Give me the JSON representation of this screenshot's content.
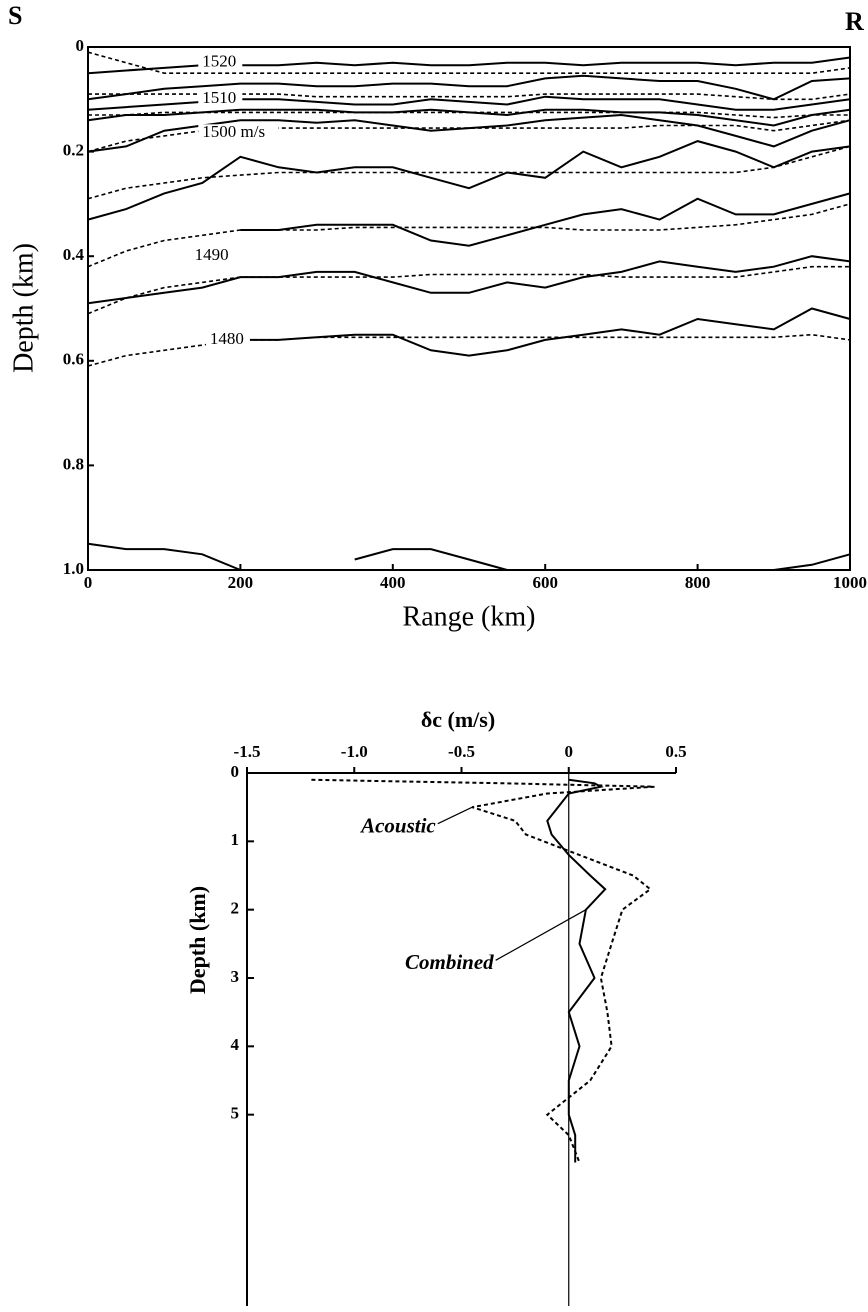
{
  "chart_data": [
    {
      "type": "line",
      "corner_labels": [
        "S",
        "R"
      ],
      "xlabel": "Range (km)",
      "ylabel": "Depth (km)",
      "xlim": [
        0,
        1000
      ],
      "ylim": [
        0,
        1
      ],
      "y_inverted": true,
      "xticks": [
        0,
        200,
        400,
        600,
        800,
        1000
      ],
      "yticks": [
        0,
        0.2,
        0.4,
        0.6,
        0.8,
        {
          "value": 1,
          "label": "1.0"
        }
      ],
      "x": [
        0,
        50,
        100,
        150,
        200,
        250,
        300,
        350,
        400,
        450,
        500,
        550,
        600,
        650,
        700,
        750,
        800,
        850,
        900,
        950,
        1000
      ],
      "series": [
        {
          "style": "solid",
          "color": "#000",
          "values": [
            0.05,
            0.045,
            0.04,
            0.035,
            0.035,
            0.035,
            0.03,
            0.035,
            0.03,
            0.035,
            0.035,
            0.03,
            0.03,
            0.035,
            0.03,
            0.03,
            0.03,
            0.035,
            0.03,
            0.03,
            0.02
          ]
        },
        {
          "style": "solid",
          "color": "#000",
          "values": [
            0.1,
            0.09,
            0.08,
            0.075,
            0.07,
            0.07,
            0.075,
            0.075,
            0.07,
            0.07,
            0.075,
            0.075,
            0.06,
            0.055,
            0.06,
            0.065,
            0.065,
            0.08,
            0.1,
            0.065,
            0.06
          ]
        },
        {
          "style": "solid",
          "color": "#000",
          "values": [
            0.12,
            0.115,
            0.11,
            0.105,
            0.1,
            0.1,
            0.105,
            0.11,
            0.11,
            0.1,
            0.105,
            0.11,
            0.095,
            0.1,
            0.1,
            0.1,
            0.11,
            0.12,
            0.12,
            0.11,
            0.1
          ]
        },
        {
          "style": "solid",
          "color": "#000",
          "values": [
            0.14,
            0.13,
            0.13,
            0.125,
            0.12,
            0.12,
            0.12,
            0.125,
            0.125,
            0.12,
            0.125,
            0.13,
            0.12,
            0.12,
            0.125,
            0.125,
            0.13,
            0.14,
            0.15,
            0.13,
            0.12
          ]
        },
        {
          "style": "solid",
          "color": "#000",
          "values": [
            0.2,
            0.19,
            0.16,
            0.15,
            0.14,
            0.14,
            0.145,
            0.14,
            0.15,
            0.16,
            0.155,
            0.15,
            0.14,
            0.135,
            0.13,
            0.14,
            0.15,
            0.17,
            0.19,
            0.16,
            0.14
          ]
        },
        {
          "style": "solid",
          "color": "#000",
          "values": [
            0.33,
            0.31,
            0.28,
            0.26,
            0.21,
            0.23,
            0.24,
            0.23,
            0.23,
            0.25,
            0.27,
            0.24,
            0.25,
            0.2,
            0.23,
            0.21,
            0.18,
            0.2,
            0.23,
            0.2,
            0.19
          ]
        },
        {
          "style": "solid",
          "color": "#000",
          "values": [
            null,
            null,
            null,
            null,
            0.35,
            0.35,
            0.34,
            0.34,
            0.34,
            0.37,
            0.38,
            0.36,
            0.34,
            0.32,
            0.31,
            0.33,
            0.29,
            0.32,
            0.32,
            0.3,
            0.28
          ]
        },
        {
          "style": "solid",
          "color": "#000",
          "values": [
            0.49,
            0.48,
            0.47,
            0.46,
            0.44,
            0.44,
            0.43,
            0.43,
            0.45,
            0.47,
            0.47,
            0.45,
            0.46,
            0.44,
            0.43,
            0.41,
            0.42,
            0.43,
            0.42,
            0.4,
            0.41
          ]
        },
        {
          "style": "solid",
          "color": "#000",
          "values": [
            null,
            null,
            null,
            null,
            0.56,
            0.56,
            0.555,
            0.55,
            0.55,
            0.58,
            0.59,
            0.58,
            0.56,
            0.55,
            0.54,
            0.55,
            0.52,
            0.53,
            0.54,
            0.5,
            0.52
          ]
        },
        {
          "style": "solid",
          "color": "#000",
          "values": [
            0.95,
            0.96,
            0.96,
            0.97,
            1,
            null,
            null,
            0.98,
            0.96,
            0.96,
            0.98,
            1,
            null,
            null,
            null,
            null,
            null,
            null,
            1,
            0.99,
            0.97
          ]
        },
        {
          "style": "dashed",
          "color": "#000",
          "values": [
            0.01,
            0.03,
            0.05,
            0.05,
            0.05,
            0.05,
            0.05,
            0.05,
            0.05,
            0.05,
            0.05,
            0.05,
            0.05,
            0.05,
            0.05,
            0.05,
            0.05,
            0.05,
            0.05,
            0.05,
            0.04
          ]
        },
        {
          "style": "dashed",
          "color": "#000",
          "values": [
            0.09,
            0.09,
            0.09,
            0.09,
            0.09,
            0.09,
            0.095,
            0.095,
            0.095,
            0.095,
            0.095,
            0.095,
            0.09,
            0.09,
            0.09,
            0.09,
            0.09,
            0.095,
            0.1,
            0.1,
            0.09
          ]
        },
        {
          "style": "dashed",
          "color": "#000",
          "values": [
            0.13,
            0.13,
            0.125,
            0.125,
            0.125,
            0.125,
            0.125,
            0.125,
            0.125,
            0.125,
            0.125,
            0.125,
            0.125,
            0.125,
            0.125,
            0.125,
            0.125,
            0.13,
            0.135,
            0.13,
            0.13
          ]
        },
        {
          "style": "dashed",
          "color": "#000",
          "values": [
            0.2,
            0.18,
            0.17,
            0.16,
            0.155,
            0.155,
            0.155,
            0.155,
            0.155,
            0.155,
            0.155,
            0.155,
            0.155,
            0.155,
            0.155,
            0.15,
            0.15,
            0.15,
            0.16,
            0.15,
            0.14
          ]
        },
        {
          "style": "dashed",
          "color": "#000",
          "values": [
            0.29,
            0.27,
            0.26,
            0.25,
            0.245,
            0.24,
            0.24,
            0.24,
            0.24,
            0.24,
            0.24,
            0.24,
            0.24,
            0.24,
            0.24,
            0.24,
            0.24,
            0.24,
            0.23,
            0.21,
            0.19
          ]
        },
        {
          "style": "dashed",
          "color": "#000",
          "values": [
            0.42,
            0.39,
            0.37,
            0.36,
            0.35,
            0.35,
            0.35,
            0.345,
            0.345,
            0.345,
            0.345,
            0.345,
            0.345,
            0.35,
            0.35,
            0.35,
            0.345,
            0.34,
            0.33,
            0.32,
            0.3
          ]
        },
        {
          "style": "dashed",
          "color": "#000",
          "values": [
            0.51,
            0.48,
            0.46,
            0.45,
            0.44,
            0.44,
            0.44,
            0.44,
            0.44,
            0.435,
            0.435,
            0.435,
            0.435,
            0.435,
            0.44,
            0.44,
            0.44,
            0.44,
            0.43,
            0.42,
            0.42
          ]
        },
        {
          "style": "dashed",
          "color": "#000",
          "values": [
            0.61,
            0.59,
            0.58,
            0.57,
            0.56,
            0.56,
            0.555,
            0.555,
            0.555,
            0.555,
            0.555,
            0.555,
            0.555,
            0.555,
            0.555,
            0.555,
            0.555,
            0.555,
            0.555,
            0.55,
            0.56
          ]
        }
      ],
      "annotations": [
        {
          "text": "1520",
          "x": 150,
          "y": 0.03
        },
        {
          "text": "1510",
          "x": 150,
          "y": 0.1
        },
        {
          "text": "1500 m/s",
          "x": 150,
          "y": 0.165
        },
        {
          "text": "1490",
          "x": 140,
          "y": 0.4
        },
        {
          "text": "1480",
          "x": 160,
          "y": 0.56
        }
      ]
    },
    {
      "type": "line",
      "value_axis": "horizontal",
      "xlabel": "δc (m/s)",
      "ylabel": "Depth (km)",
      "vlim": [
        -1.5,
        0.5
      ],
      "dlim": [
        0,
        7.8
      ],
      "vticks": [
        -1.5,
        {
          "value": -1,
          "label": "-1.0"
        },
        -0.5,
        0,
        0.5
      ],
      "dticks": [
        0,
        1,
        2,
        3,
        4,
        5
      ],
      "x": [
        0.1,
        0.15,
        0.2,
        0.3,
        0.5,
        0.7,
        0.9,
        1.2,
        1.5,
        1.7,
        2.0,
        2.5,
        3.0,
        3.5,
        4.0,
        4.5,
        5.0,
        5.3,
        5.7
      ],
      "series": [
        {
          "name": "Acoustic",
          "style": "dashed",
          "color": "#000",
          "label_at": [
            -0.62,
            0.8
          ],
          "arrow_to": 4,
          "values": [
            -1.2,
            -0.3,
            0.4,
            -0.1,
            -0.45,
            -0.25,
            -0.2,
            0.05,
            0.3,
            0.38,
            0.25,
            0.2,
            0.15,
            0.18,
            0.2,
            0.1,
            -0.1,
            0.0,
            0.05
          ]
        },
        {
          "name": "Combined",
          "style": "solid",
          "color": "#000",
          "label_at": [
            -0.35,
            2.8
          ],
          "arrow_to": 10,
          "values": [
            0.0,
            0.12,
            0.15,
            0.0,
            -0.05,
            -0.1,
            -0.08,
            0.0,
            0.1,
            0.17,
            0.08,
            0.05,
            0.12,
            0.0,
            0.05,
            0.0,
            0.0,
            0.03,
            0.03
          ]
        }
      ]
    }
  ]
}
